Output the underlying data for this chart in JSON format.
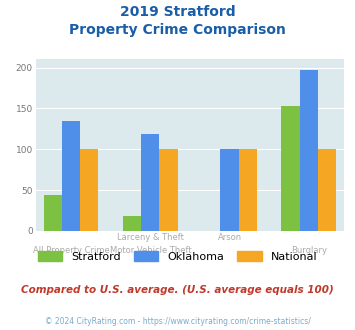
{
  "title_line1": "2019 Stratford",
  "title_line2": "Property Crime Comparison",
  "cat_labels_top": [
    "",
    "Larceny & Theft",
    "Arson",
    ""
  ],
  "cat_labels_bottom": [
    "All Property Crime",
    "Motor Vehicle Theft",
    "",
    "Burglary"
  ],
  "stratford": [
    44,
    18,
    0,
    153
  ],
  "oklahoma": [
    135,
    119,
    100,
    197
  ],
  "national": [
    100,
    100,
    100,
    100
  ],
  "color_stratford": "#7cc142",
  "color_oklahoma": "#4f8fea",
  "color_national": "#f5a623",
  "ylim": [
    0,
    210
  ],
  "yticks": [
    0,
    50,
    100,
    150,
    200
  ],
  "background_color": "#dce9ed",
  "note": "Compared to U.S. average. (U.S. average equals 100)",
  "footer": "© 2024 CityRating.com - https://www.cityrating.com/crime-statistics/",
  "title_color": "#1a5ea8",
  "note_color": "#c0392b",
  "footer_color": "#7aaacc"
}
